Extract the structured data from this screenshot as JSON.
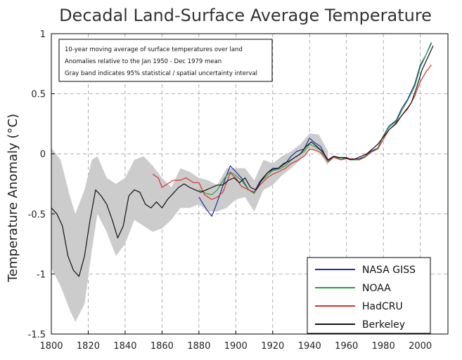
{
  "chart_data": {
    "type": "line",
    "title": "Decadal Land-Surface Average Temperature",
    "ylabel": "Temperature Anomaly (°C)",
    "xlabel": "",
    "xlim": [
      1800,
      2015
    ],
    "ylim": [
      -1.5,
      1.0
    ],
    "x_ticks": [
      "1800",
      "1820",
      "1840",
      "1860",
      "1880",
      "1900",
      "1920",
      "1940",
      "1960",
      "1980",
      "2000"
    ],
    "y_ticks": [
      "1",
      "0.5",
      "0",
      "-0.5",
      "-1",
      "-1.5"
    ],
    "grid": true,
    "legend_position": "bottom-right",
    "notes": [
      "10-year moving average of surface temperatures over land",
      "Anomalies relative to the Jan 1950 - Dec 1979 mean",
      "Gray band indicates 95% statistical / spatial uncertainty interval"
    ],
    "uncertainty_band": {
      "color": "#cccccc",
      "x": [
        1800,
        1805,
        1810,
        1813,
        1818,
        1822,
        1825,
        1830,
        1835,
        1840,
        1845,
        1850,
        1855,
        1860,
        1865,
        1870,
        1875,
        1880,
        1885,
        1890,
        1895,
        1900,
        1905,
        1910,
        1915,
        1920,
        1925,
        1930,
        1935,
        1940,
        1945,
        1950
      ],
      "upper": [
        0.05,
        -0.05,
        -0.35,
        -0.5,
        -0.3,
        -0.05,
        -0.02,
        -0.2,
        -0.25,
        -0.2,
        -0.05,
        -0.02,
        -0.1,
        -0.2,
        -0.28,
        -0.12,
        -0.15,
        -0.2,
        -0.22,
        -0.26,
        -0.12,
        -0.12,
        -0.12,
        -0.22,
        -0.05,
        -0.08,
        -0.02,
        0.02,
        0.08,
        0.17,
        0.16,
        0.02
      ],
      "lower": [
        -0.95,
        -1.1,
        -1.3,
        -1.4,
        -1.25,
        -0.8,
        -0.5,
        -0.65,
        -0.85,
        -0.75,
        -0.55,
        -0.6,
        -0.65,
        -0.62,
        -0.55,
        -0.45,
        -0.45,
        -0.42,
        -0.48,
        -0.48,
        -0.45,
        -0.38,
        -0.36,
        -0.48,
        -0.3,
        -0.26,
        -0.18,
        -0.12,
        -0.05,
        0.05,
        0.02,
        -0.1
      ]
    },
    "series": [
      {
        "name": "NASA GISS",
        "color": "#1f2fa6",
        "x": [
          1880,
          1884,
          1887,
          1890,
          1894,
          1897,
          1900,
          1903,
          1907,
          1910,
          1913,
          1917,
          1920,
          1923,
          1927,
          1930,
          1933,
          1937,
          1940,
          1943,
          1946,
          1950,
          1953,
          1957,
          1960,
          1963,
          1967,
          1970,
          1973,
          1977,
          1980,
          1983,
          1987,
          1990,
          1993,
          1997,
          2000,
          2003,
          2006
        ],
        "y": [
          -0.36,
          -0.46,
          -0.52,
          -0.4,
          -0.22,
          -0.1,
          -0.15,
          -0.2,
          -0.3,
          -0.32,
          -0.23,
          -0.16,
          -0.12,
          -0.12,
          -0.08,
          -0.02,
          0.02,
          0.04,
          0.13,
          0.09,
          0.06,
          -0.06,
          -0.02,
          -0.04,
          -0.03,
          -0.05,
          -0.04,
          -0.02,
          0.02,
          0.05,
          0.15,
          0.23,
          0.28,
          0.38,
          0.45,
          0.58,
          0.74,
          0.82,
          0.92
        ]
      },
      {
        "name": "NOAA",
        "color": "#2aa03a",
        "x": [
          1880,
          1884,
          1887,
          1890,
          1894,
          1897,
          1900,
          1903,
          1907,
          1910,
          1913,
          1917,
          1920,
          1923,
          1927,
          1930,
          1933,
          1937,
          1940,
          1943,
          1946,
          1950,
          1953,
          1957,
          1960,
          1963,
          1967,
          1970,
          1973,
          1977,
          1980,
          1983,
          1987,
          1990,
          1993,
          1997,
          2000,
          2003,
          2006
        ],
        "y": [
          -0.3,
          -0.33,
          -0.34,
          -0.3,
          -0.2,
          -0.15,
          -0.18,
          -0.22,
          -0.3,
          -0.33,
          -0.24,
          -0.18,
          -0.14,
          -0.13,
          -0.1,
          -0.05,
          -0.02,
          0.02,
          0.08,
          0.06,
          0.03,
          -0.07,
          -0.03,
          -0.04,
          -0.04,
          -0.05,
          -0.05,
          -0.03,
          0.01,
          0.05,
          0.15,
          0.22,
          0.27,
          0.36,
          0.44,
          0.56,
          0.72,
          0.82,
          0.93
        ]
      },
      {
        "name": "HadCRU",
        "color": "#d83030",
        "x": [
          1855,
          1858,
          1860,
          1863,
          1866,
          1870,
          1873,
          1877,
          1880,
          1883,
          1887,
          1890,
          1893,
          1897,
          1900,
          1903,
          1907,
          1910,
          1913,
          1917,
          1920,
          1923,
          1927,
          1930,
          1933,
          1937,
          1940,
          1943,
          1946,
          1950,
          1953,
          1957,
          1960,
          1963,
          1967,
          1970,
          1973,
          1977,
          1980,
          1983,
          1987,
          1990,
          1993,
          1997,
          2000,
          2003,
          2006
        ],
        "y": [
          -0.17,
          -0.2,
          -0.28,
          -0.25,
          -0.22,
          -0.22,
          -0.2,
          -0.24,
          -0.24,
          -0.34,
          -0.38,
          -0.36,
          -0.32,
          -0.16,
          -0.2,
          -0.27,
          -0.3,
          -0.32,
          -0.26,
          -0.2,
          -0.17,
          -0.15,
          -0.12,
          -0.08,
          -0.06,
          -0.02,
          0.04,
          0.03,
          0.01,
          -0.06,
          -0.03,
          -0.05,
          -0.04,
          -0.04,
          -0.05,
          -0.02,
          0.01,
          0.04,
          0.12,
          0.2,
          0.25,
          0.32,
          0.37,
          0.48,
          0.6,
          0.68,
          0.74
        ]
      },
      {
        "name": "Berkeley",
        "color": "#111111",
        "x": [
          1800,
          1803,
          1806,
          1809,
          1812,
          1815,
          1818,
          1821,
          1824,
          1827,
          1830,
          1833,
          1836,
          1839,
          1842,
          1845,
          1848,
          1851,
          1854,
          1857,
          1860,
          1863,
          1866,
          1869,
          1872,
          1875,
          1878,
          1881,
          1884,
          1887,
          1890,
          1893,
          1896,
          1899,
          1902,
          1905,
          1908,
          1911,
          1914,
          1917,
          1920,
          1923,
          1926,
          1929,
          1932,
          1935,
          1938,
          1941,
          1944,
          1947,
          1950,
          1953,
          1956,
          1959,
          1962,
          1965,
          1968,
          1971,
          1974,
          1977,
          1980,
          1983,
          1986,
          1989,
          1992,
          1995,
          1998,
          2001,
          2004,
          2007
        ],
        "y": [
          -0.45,
          -0.5,
          -0.6,
          -0.85,
          -0.97,
          -1.02,
          -0.85,
          -0.55,
          -0.3,
          -0.35,
          -0.42,
          -0.55,
          -0.7,
          -0.6,
          -0.35,
          -0.3,
          -0.32,
          -0.42,
          -0.45,
          -0.4,
          -0.45,
          -0.38,
          -0.33,
          -0.28,
          -0.25,
          -0.28,
          -0.3,
          -0.32,
          -0.3,
          -0.28,
          -0.26,
          -0.26,
          -0.22,
          -0.2,
          -0.24,
          -0.2,
          -0.28,
          -0.3,
          -0.22,
          -0.16,
          -0.13,
          -0.12,
          -0.08,
          -0.06,
          -0.03,
          0.0,
          0.06,
          0.1,
          0.06,
          0.02,
          -0.05,
          -0.02,
          -0.03,
          -0.03,
          -0.05,
          -0.04,
          -0.02,
          0.0,
          0.04,
          0.08,
          0.14,
          0.2,
          0.24,
          0.3,
          0.36,
          0.42,
          0.55,
          0.7,
          0.8,
          0.9
        ]
      }
    ]
  }
}
